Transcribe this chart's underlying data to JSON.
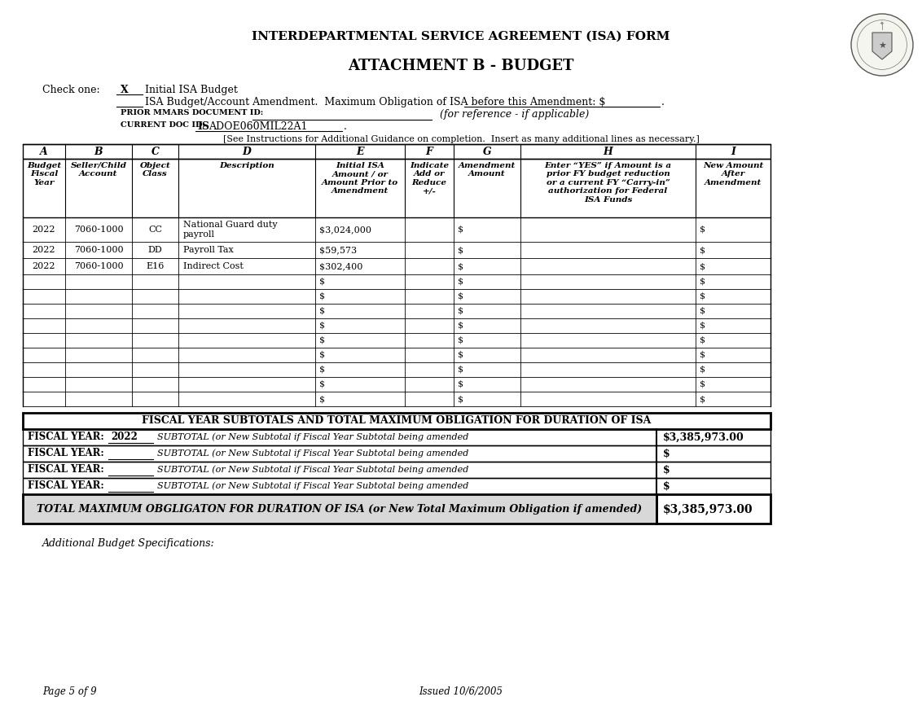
{
  "title1": "INTERDEPARTMENTAL SERVICE AGREEMENT (ISA) FORM",
  "title2": "ATTACHMENT B - BUDGET",
  "check_one_label": "Check one:",
  "check_x": "X",
  "initial_isa": "Initial ISA Budget",
  "isa_amendment": "ISA Budget/Account Amendment.  Maximum Obligation of ISA before this Amendment: $",
  "prior_mmars_label": "PRIOR MMARS DOCUMENT ID:",
  "for_reference": "(for reference - if applicable)",
  "current_doc_label": "CURRENT DOC ID:",
  "current_doc_bold": "IS",
  "current_doc_rest": "ADOE060MIL22A1",
  "instruction": "[See Instructions for Additional Guidance on completion.  Insert as many additional lines as necessary.]",
  "col_headers_row1": [
    "A",
    "B",
    "C",
    "D",
    "E",
    "F",
    "G",
    "H",
    "I"
  ],
  "col_headers_row2": [
    "Budget\nFiscal\nYear",
    "Seller/Child\nAccount",
    "Object\nClass",
    "Description",
    "Initial ISA\nAmount / or\nAmount Prior to\nAmendment",
    "Indicate\nAdd or\nReduce\n+/-",
    "Amendment\nAmount",
    "Enter “YES” if Amount is a\nprior FY budget reduction\nor a current FY “Carry-in”\nauthorization for Federal\nISA Funds",
    "New Amount\nAfter\nAmendment"
  ],
  "data_rows": [
    [
      "2022",
      "7060-1000",
      "CC",
      "National Guard duty\npayroll",
      "$3,024,000",
      "",
      "$",
      "",
      "$"
    ],
    [
      "2022",
      "7060-1000",
      "DD",
      "Payroll Tax",
      "$59,573",
      "",
      "$",
      "",
      "$"
    ],
    [
      "2022",
      "7060-1000",
      "E16",
      "Indirect Cost",
      "$302,400",
      "",
      "$",
      "",
      "$"
    ],
    [
      "",
      "",
      "",
      "",
      "$",
      "",
      "$",
      "",
      "$"
    ],
    [
      "",
      "",
      "",
      "",
      "$",
      "",
      "$",
      "",
      "$"
    ],
    [
      "",
      "",
      "",
      "",
      "$",
      "",
      "$",
      "",
      "$"
    ],
    [
      "",
      "",
      "",
      "",
      "$",
      "",
      "$",
      "",
      "$"
    ],
    [
      "",
      "",
      "",
      "",
      "$",
      "",
      "$",
      "",
      "$"
    ],
    [
      "",
      "",
      "",
      "",
      "$",
      "",
      "$",
      "",
      "$"
    ],
    [
      "",
      "",
      "",
      "",
      "$",
      "",
      "$",
      "",
      "$"
    ],
    [
      "",
      "",
      "",
      "",
      "$",
      "",
      "$",
      "",
      "$"
    ],
    [
      "",
      "",
      "",
      "",
      "$",
      "",
      "$",
      "",
      "$"
    ]
  ],
  "subtotal_title": "FISCAL YEAR SUBTOTALS AND TOTAL MAXIMUM OBLIGATION FOR DURATION OF ISA",
  "subtotal_rows": [
    [
      "FISCAL YEAR:",
      "2022",
      "SUBTOTAL (or New Subtotal if Fiscal Year Subtotal being amended",
      "$3,385,973.00"
    ],
    [
      "FISCAL YEAR:",
      "",
      "SUBTOTAL (or New Subtotal if Fiscal Year Subtotal being amended",
      "$"
    ],
    [
      "FISCAL YEAR:",
      "",
      "SUBTOTAL (or New Subtotal if Fiscal Year Subtotal being amended",
      "$"
    ],
    [
      "FISCAL YEAR:",
      "",
      "SUBTOTAL (or New Subtotal if Fiscal Year Subtotal being amended",
      "$"
    ]
  ],
  "total_label": "TOTAL MAXIMUM OBGLIGATON FOR DURATION OF ISA ",
  "total_label_italic": "(or New Total Maximum Obligation if amended)",
  "total_value": "$3,385,973.00",
  "additional_label": "Additional Budget Specifications:",
  "footer_left": "Page 5 of 9",
  "footer_right": "Issued 10/6/2005",
  "bg_color": "#ffffff"
}
